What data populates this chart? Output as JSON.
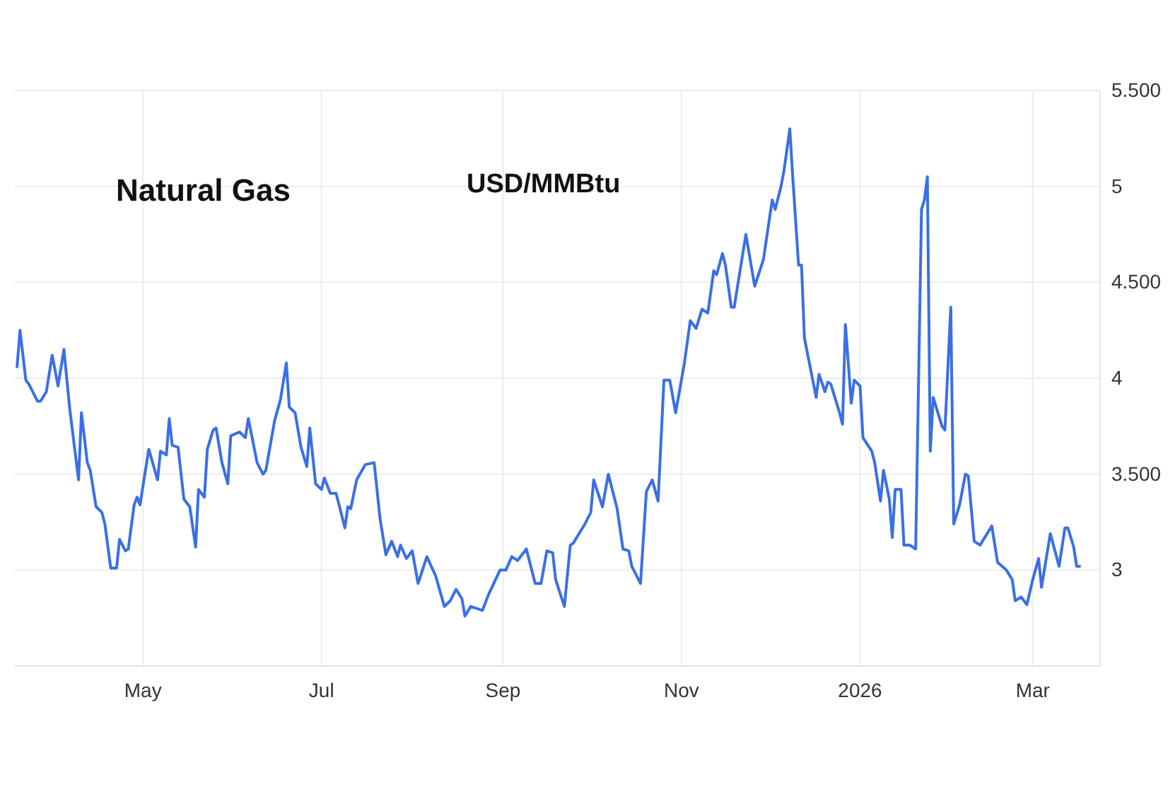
{
  "chart_data": {
    "type": "line",
    "title": "Natural Gas",
    "subtitle": "USD/MMBtu",
    "x": [
      "2025-03-19",
      "2025-03-20",
      "2025-03-22",
      "2025-03-23",
      "2025-03-26",
      "2025-03-27",
      "2025-03-29",
      "2025-03-31",
      "2025-04-02",
      "2025-04-04",
      "2025-04-06",
      "2025-04-09",
      "2025-04-10",
      "2025-04-12",
      "2025-04-13",
      "2025-04-15",
      "2025-04-17",
      "2025-04-18",
      "2025-04-20",
      "2025-04-22",
      "2025-04-23",
      "2025-04-25",
      "2025-04-26",
      "2025-04-28",
      "2025-04-29",
      "2025-04-30",
      "2025-05-03",
      "2025-05-06",
      "2025-05-07",
      "2025-05-09",
      "2025-05-10",
      "2025-05-11",
      "2025-05-13",
      "2025-05-15",
      "2025-05-17",
      "2025-05-19",
      "2025-05-20",
      "2025-05-22",
      "2025-05-23",
      "2025-05-25",
      "2025-05-26",
      "2025-05-28",
      "2025-05-30",
      "2025-05-31",
      "2025-06-03",
      "2025-06-05",
      "2025-06-06",
      "2025-06-09",
      "2025-06-11",
      "2025-06-12",
      "2025-06-15",
      "2025-06-17",
      "2025-06-19",
      "2025-06-20",
      "2025-06-22",
      "2025-06-24",
      "2025-06-26",
      "2025-06-27",
      "2025-06-29",
      "2025-07-01",
      "2025-07-02",
      "2025-07-04",
      "2025-07-06",
      "2025-07-09",
      "2025-07-10",
      "2025-07-11",
      "2025-07-13",
      "2025-07-16",
      "2025-07-19",
      "2025-07-21",
      "2025-07-23",
      "2025-07-25",
      "2025-07-27",
      "2025-07-28",
      "2025-07-30",
      "2025-08-01",
      "2025-08-03",
      "2025-08-06",
      "2025-08-09",
      "2025-08-12",
      "2025-08-14",
      "2025-08-16",
      "2025-08-18",
      "2025-08-19",
      "2025-08-21",
      "2025-08-25",
      "2025-08-27",
      "2025-08-31",
      "2025-09-02",
      "2025-09-04",
      "2025-09-06",
      "2025-09-09",
      "2025-09-12",
      "2025-09-14",
      "2025-09-16",
      "2025-09-18",
      "2025-09-19",
      "2025-09-22",
      "2025-09-24",
      "2025-09-25",
      "2025-09-27",
      "2025-09-29",
      "2025-10-01",
      "2025-10-02",
      "2025-10-05",
      "2025-10-07",
      "2025-10-10",
      "2025-10-12",
      "2025-10-14",
      "2025-10-15",
      "2025-10-18",
      "2025-10-20",
      "2025-10-22",
      "2025-10-24",
      "2025-10-26",
      "2025-10-28",
      "2025-10-30",
      "2025-11-02",
      "2025-11-04",
      "2025-11-06",
      "2025-11-08",
      "2025-11-10",
      "2025-11-12",
      "2025-11-13",
      "2025-11-15",
      "2025-11-16",
      "2025-11-18",
      "2025-11-19",
      "2025-11-23",
      "2025-11-26",
      "2025-11-29",
      "2025-12-02",
      "2025-12-03",
      "2025-12-05",
      "2025-12-06",
      "2025-12-08",
      "2025-12-09",
      "2025-12-11",
      "2025-12-12",
      "2025-12-13",
      "2025-12-17",
      "2025-12-18",
      "2025-12-20",
      "2025-12-21",
      "2025-12-22",
      "2025-12-25",
      "2025-12-26",
      "2025-12-27",
      "2025-12-29",
      "2025-12-30",
      "2026-01-01",
      "2026-01-02",
      "2026-01-05",
      "2026-01-06",
      "2026-01-08",
      "2026-01-09",
      "2026-01-11",
      "2026-01-12",
      "2026-01-13",
      "2026-01-15",
      "2026-01-16",
      "2026-01-18",
      "2026-01-20",
      "2026-01-22",
      "2026-01-23",
      "2026-01-24",
      "2026-01-25",
      "2026-01-26",
      "2026-01-29",
      "2026-01-30",
      "2026-02-01",
      "2026-02-02",
      "2026-02-04",
      "2026-02-06",
      "2026-02-07",
      "2026-02-09",
      "2026-02-11",
      "2026-02-15",
      "2026-02-17",
      "2026-02-20",
      "2026-02-22",
      "2026-02-23",
      "2026-02-25",
      "2026-02-27",
      "2026-03-01",
      "2026-03-03",
      "2026-03-04",
      "2026-03-07",
      "2026-03-10",
      "2026-03-12",
      "2026-03-13",
      "2026-03-15",
      "2026-03-16",
      "2026-03-17"
    ],
    "series": [
      {
        "color": "#3a6fe6",
        "values": [
          4.06,
          4.25,
          3.99,
          3.97,
          3.88,
          3.88,
          3.93,
          4.12,
          3.96,
          4.15,
          3.84,
          3.47,
          3.82,
          3.56,
          3.52,
          3.33,
          3.3,
          3.24,
          3.01,
          3.01,
          3.16,
          3.1,
          3.11,
          3.34,
          3.38,
          3.34,
          3.63,
          3.47,
          3.62,
          3.6,
          3.79,
          3.65,
          3.64,
          3.37,
          3.33,
          3.12,
          3.42,
          3.38,
          3.63,
          3.73,
          3.74,
          3.56,
          3.45,
          3.7,
          3.72,
          3.69,
          3.79,
          3.56,
          3.5,
          3.52,
          3.78,
          3.89,
          4.08,
          3.85,
          3.82,
          3.64,
          3.54,
          3.74,
          3.45,
          3.42,
          3.48,
          3.4,
          3.4,
          3.22,
          3.33,
          3.32,
          3.47,
          3.55,
          3.56,
          3.27,
          3.08,
          3.15,
          3.07,
          3.13,
          3.06,
          3.1,
          2.93,
          3.07,
          2.97,
          2.81,
          2.84,
          2.9,
          2.85,
          2.76,
          2.81,
          2.79,
          2.87,
          3.0,
          3.0,
          3.07,
          3.05,
          3.11,
          2.93,
          2.93,
          3.1,
          3.09,
          2.95,
          2.81,
          3.13,
          3.14,
          3.19,
          3.24,
          3.3,
          3.47,
          3.33,
          3.5,
          3.32,
          3.11,
          3.1,
          3.02,
          2.93,
          3.41,
          3.47,
          3.36,
          3.99,
          3.99,
          3.82,
          4.08,
          4.3,
          4.26,
          4.36,
          4.34,
          4.56,
          4.54,
          4.65,
          4.59,
          4.37,
          4.37,
          4.75,
          4.48,
          4.62,
          4.93,
          4.88,
          5.0,
          5.08,
          5.3,
          5.05,
          4.59,
          4.59,
          4.21,
          3.9,
          4.02,
          3.93,
          3.98,
          3.97,
          3.82,
          3.76,
          4.28,
          3.87,
          3.99,
          3.96,
          3.69,
          3.62,
          3.56,
          3.36,
          3.52,
          3.37,
          3.17,
          3.42,
          3.42,
          3.13,
          3.13,
          3.11,
          4.88,
          4.93,
          5.05,
          3.62,
          3.9,
          3.75,
          3.73,
          4.37,
          3.24,
          3.34,
          3.5,
          3.49,
          3.15,
          3.13,
          3.23,
          3.04,
          3.0,
          2.95,
          2.84,
          2.86,
          2.82,
          2.95,
          3.06,
          2.91,
          3.19,
          3.02,
          3.22,
          3.22,
          3.12,
          3.02,
          3.02
        ]
      }
    ],
    "xlim": [
      "2025-03-18",
      "2026-03-24"
    ],
    "xticks": [
      {
        "value": "2025-05-01",
        "label": "May"
      },
      {
        "value": "2025-07-01",
        "label": "Jul"
      },
      {
        "value": "2025-09-01",
        "label": "Sep"
      },
      {
        "value": "2025-11-01",
        "label": "Nov"
      },
      {
        "value": "2026-01-01",
        "label": "2026"
      },
      {
        "value": "2026-03-01",
        "label": "Mar"
      }
    ],
    "ylim": [
      2.5,
      5.5
    ],
    "yticks": [
      3,
      {
        "value": 3.5,
        "label": "3.500"
      },
      4,
      {
        "value": 4.5,
        "label": "4.500"
      },
      5,
      {
        "value": 5.5,
        "label": "5.500"
      }
    ],
    "grid": true,
    "line_style": "solid",
    "marker": "none"
  }
}
